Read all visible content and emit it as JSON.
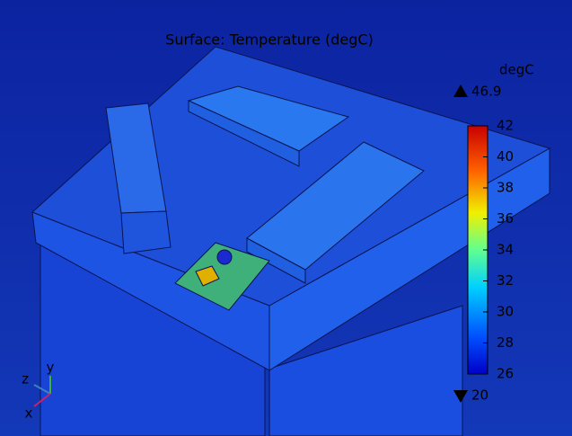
{
  "chart_data": {
    "type": "surface",
    "title": "Surface: Temperature (degC)",
    "colorbar_label": "degC",
    "max": 46.9,
    "min": 20,
    "ylim": [
      26,
      42
    ],
    "yticks": [
      26,
      28,
      30,
      32,
      34,
      36,
      38,
      40,
      42
    ],
    "triad": {
      "z": "z",
      "y": "y",
      "x": "x"
    }
  }
}
